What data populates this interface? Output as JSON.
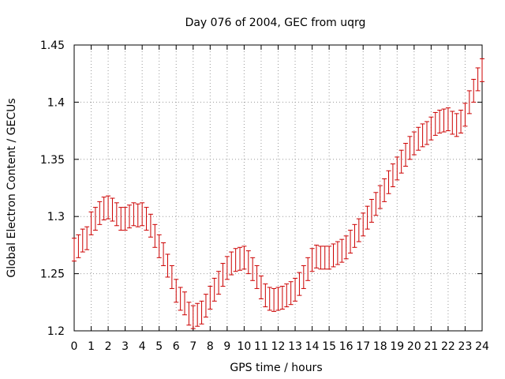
{
  "chart_data": {
    "type": "scatter",
    "title": "Day 076 of 2004, GEC from uqrg",
    "xlabel": "GPS time / hours",
    "ylabel": "Global Electron Content / GECUs",
    "xlim": [
      0,
      24
    ],
    "ylim": [
      1.2,
      1.45
    ],
    "x_ticks": [
      0,
      1,
      2,
      3,
      4,
      5,
      6,
      7,
      8,
      9,
      10,
      11,
      12,
      13,
      14,
      15,
      16,
      17,
      18,
      19,
      20,
      21,
      22,
      23,
      24
    ],
    "y_ticks": [
      1.2,
      1.25,
      1.3,
      1.35,
      1.4,
      1.45
    ],
    "x_tick_labels": [
      "0",
      "1",
      "2",
      "3",
      "4",
      "5",
      "6",
      "7",
      "8",
      "9",
      "10",
      "11",
      "12",
      "13",
      "14",
      "15",
      "16",
      "17",
      "18",
      "19",
      "20",
      "21",
      "22",
      "23",
      "24"
    ],
    "y_tick_labels": [
      "1.2",
      "1.25",
      "1.3",
      "1.35",
      "1.4",
      "1.45"
    ],
    "grid": true,
    "colors": {
      "series": "#cc0000",
      "grid": "#999999",
      "axis": "#000000"
    },
    "series": [
      {
        "x": [
          0.0,
          0.25,
          0.5,
          0.75,
          1.0,
          1.25,
          1.5,
          1.75,
          2.0,
          2.25,
          2.5,
          2.75,
          3.0,
          3.25,
          3.5,
          3.75,
          4.0,
          4.25,
          4.5,
          4.75,
          5.0,
          5.25,
          5.5,
          5.75,
          6.0,
          6.25,
          6.5,
          6.75,
          7.0,
          7.25,
          7.5,
          7.75,
          8.0,
          8.25,
          8.5,
          8.75,
          9.0,
          9.25,
          9.5,
          9.75,
          10.0,
          10.25,
          10.5,
          10.75,
          11.0,
          11.25,
          11.5,
          11.75,
          12.0,
          12.25,
          12.5,
          12.75,
          13.0,
          13.25,
          13.5,
          13.75,
          14.0,
          14.25,
          14.5,
          14.75,
          15.0,
          15.25,
          15.5,
          15.75,
          16.0,
          16.25,
          16.5,
          16.75,
          17.0,
          17.25,
          17.5,
          17.75,
          18.0,
          18.25,
          18.5,
          18.75,
          19.0,
          19.25,
          19.5,
          19.75,
          20.0,
          20.25,
          20.5,
          20.75,
          21.0,
          21.25,
          21.5,
          21.75,
          22.0,
          22.25,
          22.5,
          22.75,
          23.0,
          23.25,
          23.5,
          23.75,
          24.0
        ],
        "y": [
          1.271,
          1.274,
          1.279,
          1.281,
          1.294,
          1.298,
          1.303,
          1.307,
          1.308,
          1.306,
          1.302,
          1.298,
          1.298,
          1.3,
          1.302,
          1.301,
          1.302,
          1.298,
          1.292,
          1.283,
          1.274,
          1.267,
          1.257,
          1.247,
          1.235,
          1.228,
          1.224,
          1.215,
          1.212,
          1.214,
          1.216,
          1.222,
          1.229,
          1.236,
          1.242,
          1.249,
          1.255,
          1.259,
          1.262,
          1.263,
          1.264,
          1.26,
          1.254,
          1.247,
          1.238,
          1.231,
          1.228,
          1.227,
          1.228,
          1.229,
          1.231,
          1.233,
          1.236,
          1.241,
          1.247,
          1.254,
          1.262,
          1.265,
          1.264,
          1.264,
          1.264,
          1.266,
          1.268,
          1.27,
          1.273,
          1.278,
          1.283,
          1.288,
          1.293,
          1.299,
          1.305,
          1.311,
          1.317,
          1.323,
          1.33,
          1.336,
          1.342,
          1.348,
          1.354,
          1.36,
          1.364,
          1.368,
          1.371,
          1.373,
          1.377,
          1.381,
          1.383,
          1.384,
          1.385,
          1.382,
          1.38,
          1.383,
          1.389,
          1.4,
          1.41,
          1.42,
          1.428
        ],
        "error": 0.01
      }
    ]
  }
}
